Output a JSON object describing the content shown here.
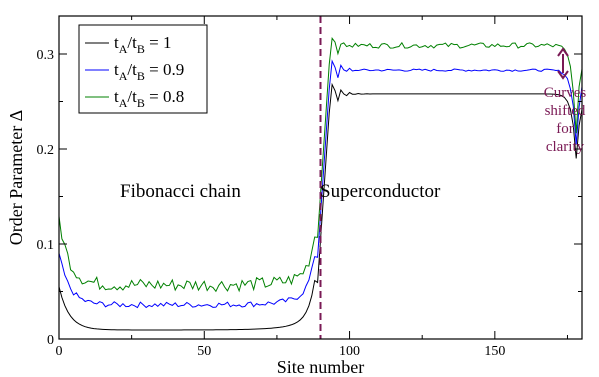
{
  "chart_data": {
    "type": "line",
    "xlabel": "Site number",
    "ylabel": "Order Parameter Δ",
    "xlim": [
      0,
      180
    ],
    "ylim": [
      0,
      0.34
    ],
    "xticks": [
      0,
      50,
      100,
      150
    ],
    "yticks": [
      0,
      0.1,
      0.2,
      0.3
    ],
    "xtick_labels": [
      "0",
      "50",
      "100",
      "150"
    ],
    "ytick_labels": [
      "0",
      "0.1",
      "0.2",
      "0.3"
    ],
    "grid": false,
    "legend_position": "top-left",
    "interface_x": 90,
    "region_labels": {
      "left": "Fibonacci chain",
      "right": "Superconductor"
    },
    "annotation": {
      "lines": [
        "Curves",
        "shifted",
        "for",
        "clarity"
      ],
      "color": "#7a1a55"
    },
    "series": [
      {
        "legend_main": "t",
        "sub_a": "A",
        "slash": "/t",
        "sub_b": "B",
        "value_text": " = 1",
        "color": "#000000",
        "edge_left": 0.055,
        "fib_min": 0.0095,
        "sc_plateau": 0.258,
        "sc_dip": 0.19,
        "noise": 0.0
      },
      {
        "legend_main": "t",
        "sub_a": "A",
        "slash": "/t",
        "sub_b": "B",
        "value_text": " = 0.9",
        "color": "#0000ff",
        "edge_left": 0.09,
        "fib_min": 0.036,
        "sc_plateau": 0.283,
        "sc_dip": 0.205,
        "noise": 0.003
      },
      {
        "legend_main": "t",
        "sub_a": "A",
        "slash": "/t",
        "sub_b": "B",
        "value_text": " = 0.8",
        "color": "#008000",
        "edge_left": 0.128,
        "fib_min": 0.057,
        "sc_plateau": 0.309,
        "sc_dip": 0.215,
        "noise": 0.007
      }
    ]
  }
}
